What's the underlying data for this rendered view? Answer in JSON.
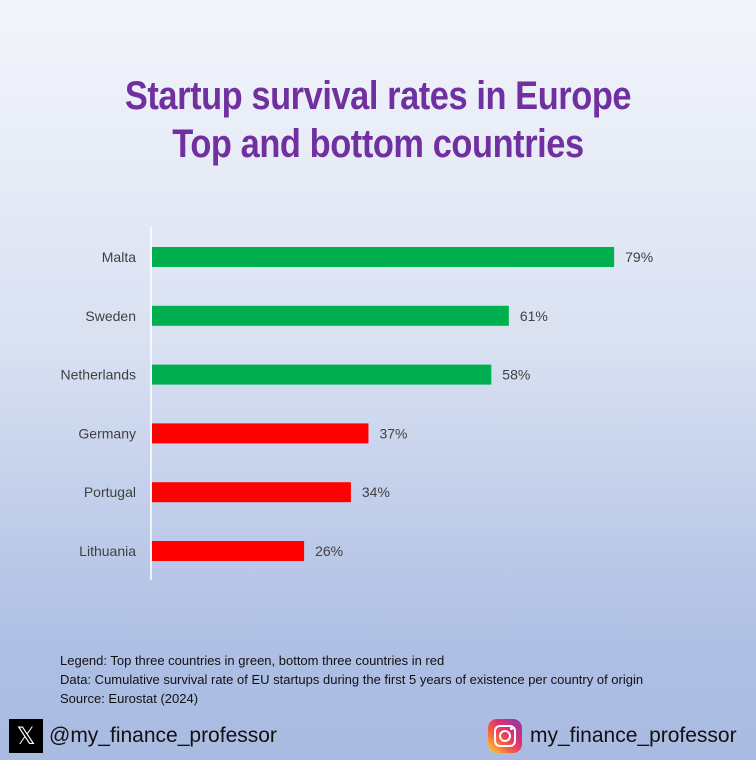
{
  "title_lines": [
    "Startup survival rates in Europe",
    "Top and bottom countries"
  ],
  "chart_data": {
    "type": "bar",
    "orientation": "horizontal",
    "categories": [
      "Malta",
      "Sweden",
      "Netherlands",
      "Germany",
      "Portugal",
      "Lithuania"
    ],
    "values": [
      79,
      61,
      58,
      37,
      34,
      26
    ],
    "data_labels": [
      "79%",
      "61%",
      "58%",
      "37%",
      "34%",
      "26%"
    ],
    "colors": [
      "#00b050",
      "#00b050",
      "#00b050",
      "#ff0000",
      "#ff0000",
      "#ff0000"
    ],
    "xlim": [
      0,
      100
    ],
    "unit": "%",
    "xlabel": "",
    "ylabel": ""
  },
  "notes": {
    "legend": "Legend: Top three countries in green, bottom three countries in red",
    "data": "Data: Cumulative survival rate of EU startups during the first 5 years of existence per country of origin",
    "source": "Source: Eurostat (2024)"
  },
  "social": {
    "x_handle": "@my_finance_professor",
    "instagram_handle": "my_finance_professor",
    "x_icon": "x-logo-icon",
    "instagram_icon": "instagram-logo-icon"
  }
}
